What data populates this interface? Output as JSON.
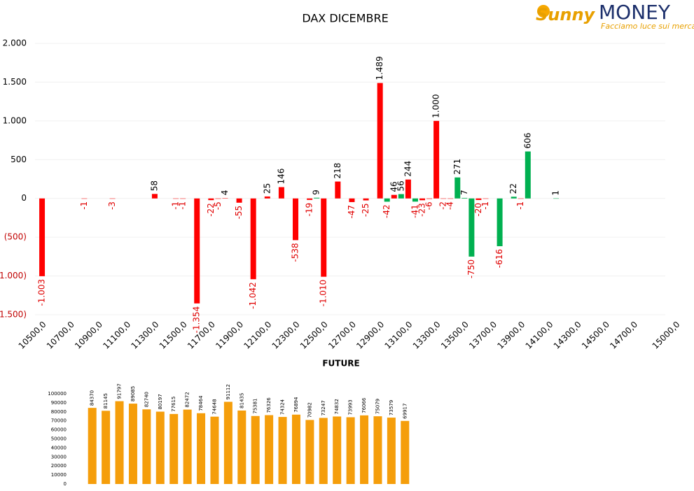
{
  "logo": {
    "brand1": "Sunny",
    "brand2": "MONEY",
    "tagline": "Facciamo luce sui mercati"
  },
  "chart_data": [
    {
      "type": "bar",
      "title": "DAX DICEMBRE",
      "x": [
        10500,
        10800,
        11000,
        11300,
        11450,
        11500,
        11600,
        11700,
        11750,
        11800,
        11900,
        12000,
        12100,
        12200,
        12300,
        12400,
        12450,
        12500,
        12600,
        12700,
        12800,
        12900,
        12950,
        13000,
        13050,
        13100,
        13150,
        13200,
        13250,
        13300,
        13350,
        13400,
        13450,
        13500,
        13550,
        13600,
        13650,
        13750,
        13850,
        13900,
        13950,
        14150
      ],
      "values": [
        -1003,
        -1,
        -3,
        58,
        -1,
        -1,
        -1354,
        -22,
        -5,
        4,
        -55,
        -1042,
        25,
        146,
        -538,
        -19,
        9,
        -1010,
        218,
        -47,
        -25,
        1489,
        -42,
        46,
        56,
        244,
        -41,
        -23,
        -6,
        1000,
        -2,
        -4,
        271,
        7,
        -750,
        -20,
        -1,
        -616,
        22,
        -1,
        606,
        1
      ],
      "value_labels": [
        "-1.003",
        "-1",
        "-3",
        "58",
        "-1",
        "-1",
        "-1.354",
        "-22",
        "-5",
        "4",
        "-55",
        "-1.042",
        "25",
        "146",
        "-538",
        "-19",
        "9",
        "-1.010",
        "218",
        "-47",
        "-25",
        "1.489",
        "-42",
        "46",
        "56",
        "244",
        "-41",
        "-23",
        "-6",
        "1.000",
        "-2",
        "-4",
        "271",
        "7",
        "-750",
        "-20",
        "-1",
        "-616",
        "22",
        "-1",
        "606",
        "1"
      ],
      "colors": [
        "#ff0000",
        "#ff0000",
        "#ff0000",
        "#ff0000",
        "#ff0000",
        "#ff0000",
        "#ff0000",
        "#ff0000",
        "#ff0000",
        "#ff0000",
        "#ff0000",
        "#ff0000",
        "#ff0000",
        "#ff0000",
        "#ff0000",
        "#ff0000",
        "#00b050",
        "#ff0000",
        "#ff0000",
        "#ff0000",
        "#ff0000",
        "#ff0000",
        "#00b050",
        "#ff0000",
        "#00b050",
        "#ff0000",
        "#00b050",
        "#ff0000",
        "#ff0000",
        "#ff0000",
        "#ff0000",
        "#ff0000",
        "#00b050",
        "#00b050",
        "#00b050",
        "#ff0000",
        "#ff0000",
        "#00b050",
        "#00b050",
        "#ff0000",
        "#00b050",
        "#00b050"
      ],
      "xlim": [
        10450,
        15050
      ],
      "xticks": [
        {
          "value": 10500,
          "label": "10500,0"
        },
        {
          "value": 10700,
          "label": "10700,0"
        },
        {
          "value": 10900,
          "label": "10900,0"
        },
        {
          "value": 11100,
          "label": "11100,0"
        },
        {
          "value": 11300,
          "label": "11300,0"
        },
        {
          "value": 11500,
          "label": "11500,0"
        },
        {
          "value": 11700,
          "label": "11700,0"
        },
        {
          "value": 11900,
          "label": "11900,0"
        },
        {
          "value": 12100,
          "label": "12100,0"
        },
        {
          "value": 12300,
          "label": "12300,0"
        },
        {
          "value": 12500,
          "label": "12500,0"
        },
        {
          "value": 12700,
          "label": "12700,0"
        },
        {
          "value": 12900,
          "label": "12900,0"
        },
        {
          "value": 13100,
          "label": "13100,0"
        },
        {
          "value": 13300,
          "label": "13300,0"
        },
        {
          "value": 13500,
          "label": "13500,0"
        },
        {
          "value": 13700,
          "label": "13700,0"
        },
        {
          "value": 13900,
          "label": "13900,0"
        },
        {
          "value": 14100,
          "label": "14100,0"
        },
        {
          "value": 14300,
          "label": "14300,0"
        },
        {
          "value": 14500,
          "label": "14500,0"
        },
        {
          "value": 14700,
          "label": "14700,0"
        },
        {
          "value": 15000,
          "label": "15000,0"
        }
      ],
      "ylim": [
        -1500,
        2000
      ],
      "yticks": [
        {
          "value": 2000,
          "label": "2.000"
        },
        {
          "value": 1500,
          "label": "1.500"
        },
        {
          "value": 1000,
          "label": "1.000"
        },
        500,
        0,
        {
          "value": -500,
          "label": "(500)"
        },
        {
          "value": -1000,
          "label": "(1.000)"
        },
        {
          "value": -1500,
          "label": "(1.500)"
        }
      ],
      "grid": true
    },
    {
      "type": "bar",
      "title": "FUTURE",
      "color": "#f59e0b",
      "values": [
        84370,
        81145,
        91797,
        89085,
        82740,
        80197,
        77615,
        82472,
        78464,
        74648,
        91112,
        81435,
        75381,
        76326,
        74324,
        76894,
        70982,
        73247,
        74832,
        73993,
        76066,
        75079,
        73579,
        69917
      ],
      "ylim": [
        0,
        100000
      ],
      "yticks": [
        0,
        10000,
        20000,
        30000,
        40000,
        50000,
        60000,
        70000,
        80000,
        90000,
        100000
      ]
    }
  ]
}
